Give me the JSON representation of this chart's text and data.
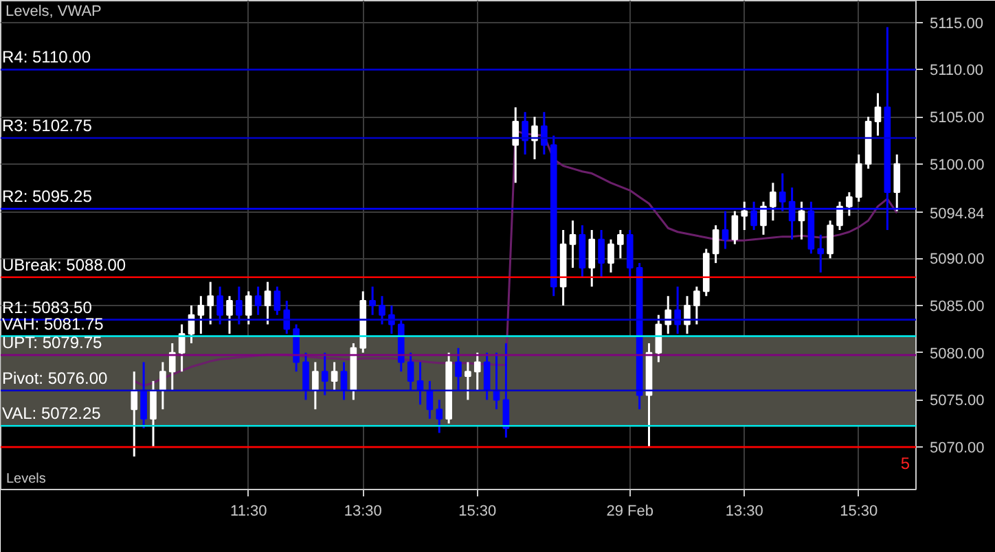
{
  "chart_data": {
    "type": "candlestick",
    "title": "Levels, VWAP",
    "categories": [
      null,
      null,
      null,
      null,
      null,
      null,
      null,
      null,
      null,
      null,
      null,
      null,
      "11:30",
      null,
      null,
      null,
      null,
      null,
      null,
      null,
      null,
      null,
      null,
      null,
      "13:30",
      null,
      null,
      null,
      null,
      null,
      null,
      null,
      null,
      null,
      null,
      null,
      "15:30",
      null,
      null,
      null,
      null,
      null,
      null,
      null,
      null,
      null,
      null,
      null,
      null,
      null,
      null,
      null,
      "29 Feb",
      null,
      null,
      null,
      null,
      null,
      null,
      null,
      null,
      null,
      null,
      null,
      "13:30",
      null,
      null,
      null,
      null,
      null,
      null,
      null,
      null,
      null,
      null,
      null,
      "15:30",
      null,
      null,
      null,
      null
    ],
    "ohlc": [
      [
        5074,
        5078,
        5069,
        5076
      ],
      [
        5076,
        5079,
        5072,
        5073
      ],
      [
        5073,
        5077,
        5070,
        5076
      ],
      [
        5076,
        5079,
        5074,
        5078
      ],
      [
        5078,
        5081,
        5076,
        5080
      ],
      [
        5080,
        5083,
        5078,
        5082
      ],
      [
        5082,
        5085,
        5081,
        5084
      ],
      [
        5084,
        5086,
        5082,
        5085
      ],
      [
        5085,
        5087.5,
        5083,
        5086
      ],
      [
        5086,
        5087,
        5083,
        5084
      ],
      [
        5084,
        5086,
        5082,
        5085.5
      ],
      [
        5085.5,
        5087,
        5083,
        5084
      ],
      [
        5084,
        5086.5,
        5083,
        5086
      ],
      [
        5086,
        5087,
        5084,
        5085
      ],
      [
        5085,
        5087.5,
        5083,
        5086.5
      ],
      [
        5086.5,
        5087,
        5084,
        5084.5
      ],
      [
        5084.5,
        5085.5,
        5082,
        5082.5
      ],
      [
        5082.5,
        5083,
        5078,
        5079
      ],
      [
        5079,
        5080,
        5075,
        5076
      ],
      [
        5076,
        5079,
        5074,
        5078
      ],
      [
        5078,
        5080,
        5075.5,
        5077
      ],
      [
        5077,
        5079,
        5076,
        5078
      ],
      [
        5078,
        5079,
        5075,
        5076
      ],
      [
        5076,
        5081,
        5075,
        5080.5
      ],
      [
        5080.5,
        5086.5,
        5080,
        5085.5
      ],
      [
        5085.5,
        5087,
        5084,
        5085
      ],
      [
        5085,
        5086,
        5083,
        5084
      ],
      [
        5084,
        5085,
        5082,
        5083
      ],
      [
        5083,
        5083.5,
        5078,
        5079
      ],
      [
        5079,
        5080,
        5076,
        5077
      ],
      [
        5077,
        5079,
        5074.5,
        5076
      ],
      [
        5076,
        5077,
        5073,
        5074
      ],
      [
        5074,
        5075,
        5071.5,
        5073
      ],
      [
        5073,
        5080,
        5072.5,
        5079
      ],
      [
        5079,
        5080.5,
        5076,
        5077.5
      ],
      [
        5077.5,
        5079,
        5075,
        5078
      ],
      [
        5078,
        5080,
        5076,
        5079
      ],
      [
        5079,
        5080,
        5075,
        5076
      ],
      [
        5076,
        5080,
        5074,
        5075
      ],
      [
        5075,
        5081,
        5071,
        5072
      ],
      [
        5102,
        5106,
        5098,
        5104.5
      ],
      [
        5104.5,
        5105.5,
        5101,
        5102.5
      ],
      [
        5102.5,
        5105,
        5100.5,
        5104
      ],
      [
        5104,
        5105.5,
        5101,
        5102
      ],
      [
        5102,
        5103,
        5086,
        5087
      ],
      [
        5087,
        5093,
        5085,
        5091.5
      ],
      [
        5091.5,
        5094,
        5089,
        5092.5
      ],
      [
        5092.5,
        5093.5,
        5088,
        5089
      ],
      [
        5089,
        5093,
        5087,
        5092
      ],
      [
        5092,
        5093,
        5088,
        5089.5
      ],
      [
        5089.5,
        5092,
        5088.5,
        5091.5
      ],
      [
        5091.5,
        5093,
        5090,
        5092.5
      ],
      [
        5092.5,
        5093,
        5088,
        5089
      ],
      [
        5089,
        5089.5,
        5074,
        5075.5
      ],
      [
        5075.5,
        5081,
        5070,
        5080
      ],
      [
        5080,
        5084,
        5079,
        5083
      ],
      [
        5083,
        5086,
        5082,
        5084.5
      ],
      [
        5084.5,
        5087,
        5082,
        5083
      ],
      [
        5083,
        5086,
        5082,
        5085
      ],
      [
        5085,
        5087,
        5083,
        5086.5
      ],
      [
        5086.5,
        5091,
        5086,
        5090.5
      ],
      [
        5090.5,
        5093.5,
        5089.5,
        5093
      ],
      [
        5093,
        5095,
        5091,
        5092
      ],
      [
        5092,
        5095,
        5091.5,
        5094.5
      ],
      [
        5094.5,
        5096,
        5093,
        5095
      ],
      [
        5095,
        5096,
        5093,
        5093.5
      ],
      [
        5093.5,
        5096,
        5092.5,
        5095.5
      ],
      [
        5095.5,
        5098,
        5094,
        5097
      ],
      [
        5097,
        5099,
        5095,
        5096
      ],
      [
        5096,
        5097.5,
        5092,
        5094
      ],
      [
        5094,
        5096,
        5092,
        5095
      ],
      [
        5095,
        5096,
        5090.5,
        5091
      ],
      [
        5091,
        5092.5,
        5088.5,
        5090.5
      ],
      [
        5090.5,
        5094,
        5090,
        5093.5
      ],
      [
        5093.5,
        5096,
        5093,
        5095.5
      ],
      [
        5095.5,
        5097,
        5094.5,
        5096.5
      ],
      [
        5096.5,
        5101,
        5096,
        5100
      ],
      [
        5100,
        5105,
        5099.5,
        5104.5
      ],
      [
        5104.5,
        5107.5,
        5103,
        5106
      ],
      [
        5106,
        5114.5,
        5093,
        5097
      ],
      [
        5097,
        5101,
        5095,
        5100
      ]
    ],
    "colors": [
      "#ffffff",
      "#0000ff",
      "#ffffff",
      "#ffffff",
      "#ffffff",
      "#ffffff",
      "#ffffff",
      "#ffffff",
      "#ffffff",
      "#0000ff",
      "#ffffff",
      "#0000ff",
      "#ffffff",
      "#0000ff",
      "#ffffff",
      "#0000ff",
      "#0000ff",
      "#0000ff",
      "#0000ff",
      "#ffffff",
      "#0000ff",
      "#ffffff",
      "#0000ff",
      "#ffffff",
      "#ffffff",
      "#0000ff",
      "#0000ff",
      "#0000ff",
      "#0000ff",
      "#0000ff",
      "#0000ff",
      "#0000ff",
      "#0000ff",
      "#ffffff",
      "#0000ff",
      "#ffffff",
      "#ffffff",
      "#0000ff",
      "#0000ff",
      "#0000ff",
      "#ffffff",
      "#0000ff",
      "#ffffff",
      "#0000ff",
      "#0000ff",
      "#ffffff",
      "#ffffff",
      "#0000ff",
      "#ffffff",
      "#0000ff",
      "#ffffff",
      "#ffffff",
      "#0000ff",
      "#0000ff",
      "#ffffff",
      "#ffffff",
      "#ffffff",
      "#0000ff",
      "#ffffff",
      "#ffffff",
      "#ffffff",
      "#ffffff",
      "#0000ff",
      "#ffffff",
      "#ffffff",
      "#0000ff",
      "#ffffff",
      "#ffffff",
      "#0000ff",
      "#0000ff",
      "#ffffff",
      "#0000ff",
      "#0000ff",
      "#ffffff",
      "#ffffff",
      "#ffffff",
      "#ffffff",
      "#ffffff",
      "#ffffff",
      "#0000ff",
      "#ffffff"
    ],
    "series": [
      {
        "type": "line",
        "color": "#6b1f6b",
        "values": [
          5077,
          5076.5,
          5076.8,
          5077.3,
          5077.7,
          5078.1,
          5078.5,
          5078.8,
          5079.1,
          5079.3,
          5079.4,
          5079.5,
          5079.6,
          5079.7,
          5079.8,
          5079.8,
          5079.8,
          5079.7,
          5079.6,
          5079.5,
          5079.4,
          5079.4,
          5079.3,
          5079.3,
          5079.4,
          5079.4,
          5079.4,
          5079.4,
          5079.3,
          5079.2,
          5079.1,
          5079,
          5078.9,
          5078.9,
          5078.9,
          5078.9,
          5078.8,
          5078.8,
          5078.7,
          5078.7,
          5103.5,
          5103.2,
          5103.1,
          5103,
          5100.5,
          5099.8,
          5099.5,
          5099.2,
          5099,
          5098.5,
          5098,
          5097.6,
          5097.2,
          5096.5,
          5095.8,
          5094.5,
          5093.2,
          5092.8,
          5092.6,
          5092.4,
          5092.2,
          5092,
          5091.9,
          5091.9,
          5091.9,
          5092,
          5092.1,
          5092.2,
          5092.3,
          5092.3,
          5092.4,
          5092.3,
          5092.2,
          5092.3,
          5092.5,
          5092.8,
          5093.3,
          5094,
          5095.5,
          5096.3,
          5094.8
        ]
      }
    ],
    "ylim": [
      5065.5,
      5117.3
    ],
    "yticks": [
      {
        "value": 5070,
        "label": "5070.00"
      },
      {
        "value": 5075,
        "label": "5075.00"
      },
      {
        "value": 5080,
        "label": "5080.00"
      },
      {
        "value": 5085,
        "label": "5085.00"
      },
      {
        "value": 5090,
        "label": "5090.00"
      },
      {
        "value": 5094.84,
        "label": "5094.84"
      },
      {
        "value": 5100,
        "label": "5100.00"
      },
      {
        "value": 5105,
        "label": "5105.00"
      },
      {
        "value": 5110,
        "label": "5110.00"
      },
      {
        "value": 5115,
        "label": "5115.00"
      }
    ],
    "grid": true,
    "bands": [
      {
        "axis": "y",
        "from": 5072.25,
        "to": 5081.75,
        "color": "#4d4c44"
      }
    ],
    "ref_lines": [
      {
        "axis": "y",
        "value": 5110,
        "label": "R4: 5110.00",
        "color": "#0000cc"
      },
      {
        "axis": "y",
        "value": 5102.75,
        "label": "R3: 5102.75",
        "color": "#0000cc"
      },
      {
        "axis": "y",
        "value": 5095.25,
        "label": "R2: 5095.25",
        "color": "#0000ff"
      },
      {
        "axis": "y",
        "value": 5088,
        "label": "UBreak: 5088.00",
        "color": "#ff0000"
      },
      {
        "axis": "y",
        "value": 5083.5,
        "label": "R1: 5083.50",
        "color": "#0000cc"
      },
      {
        "axis": "y",
        "value": 5081.75,
        "label": "VAH: 5081.75",
        "color": "#00e5e5"
      },
      {
        "axis": "y",
        "value": 5079.75,
        "label": "UPT: 5079.75",
        "color": "#800080"
      },
      {
        "axis": "y",
        "value": 5076,
        "label": "Pivot: 5076.00",
        "color": "#0000cc"
      },
      {
        "axis": "y",
        "value": 5072.25,
        "label": "VAL: 5072.25",
        "color": "#00e5e5"
      },
      {
        "axis": "y",
        "value": 5070,
        "color": "#ff0000"
      }
    ],
    "annotations": [
      "Levels",
      {
        "text": "5",
        "y": 5070
      }
    ]
  }
}
